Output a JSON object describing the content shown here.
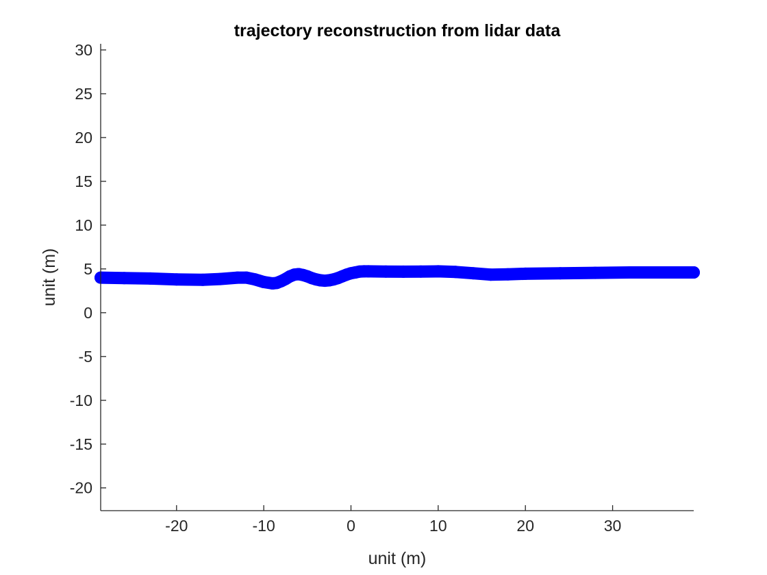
{
  "chart_data": {
    "type": "line",
    "title": "trajectory reconstruction from lidar data",
    "xlabel": "unit (m)",
    "ylabel": "unit (m)",
    "xlim": [
      -28.7,
      39.3
    ],
    "ylim": [
      -22.6,
      30.7
    ],
    "xticks": [
      -20,
      -10,
      0,
      10,
      20,
      30
    ],
    "yticks": [
      -20,
      -15,
      -10,
      -5,
      0,
      5,
      10,
      15,
      20,
      25,
      30
    ],
    "grid": false,
    "legend": "none",
    "series": [
      {
        "color": "#0000ff",
        "marker": "filled-circle",
        "x": [
          -28.7,
          -26,
          -23,
          -20,
          -17,
          -15,
          -13,
          -12,
          -11,
          -10,
          -9,
          -8.5,
          -8,
          -7.5,
          -7,
          -6.5,
          -6,
          -5.5,
          -5,
          -4.5,
          -4,
          -3.5,
          -3,
          -2.5,
          -2,
          -1.5,
          -1,
          -0.5,
          0,
          0.5,
          1,
          1.5,
          2,
          4,
          6,
          8,
          10,
          12,
          14,
          16,
          18,
          20,
          24,
          28,
          32,
          36,
          39.3
        ],
        "y": [
          4.0,
          3.95,
          3.9,
          3.8,
          3.75,
          3.85,
          4.0,
          4.0,
          3.8,
          3.5,
          3.35,
          3.4,
          3.6,
          3.85,
          4.15,
          4.35,
          4.4,
          4.3,
          4.15,
          3.95,
          3.8,
          3.7,
          3.65,
          3.7,
          3.8,
          3.95,
          4.15,
          4.35,
          4.5,
          4.6,
          4.7,
          4.72,
          4.72,
          4.7,
          4.68,
          4.7,
          4.72,
          4.65,
          4.5,
          4.35,
          4.38,
          4.45,
          4.5,
          4.55,
          4.6,
          4.6,
          4.6
        ]
      }
    ]
  }
}
